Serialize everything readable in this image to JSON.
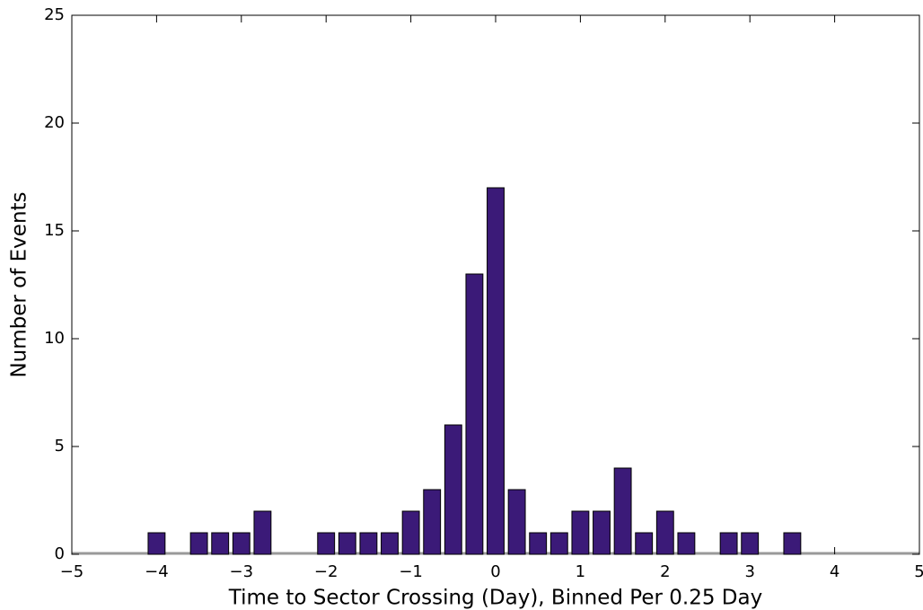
{
  "chart_data": {
    "type": "bar",
    "x_label": "Time to Sector Crossing (Day), Binned Per 0.25 Day",
    "y_label": "Number of Events",
    "x": [
      -4,
      -3.5,
      -3.25,
      -3,
      -2.75,
      -2,
      -1.75,
      -1.5,
      -1.25,
      -1,
      -0.75,
      -0.5,
      -0.25,
      0,
      0.25,
      0.5,
      0.75,
      1,
      1.25,
      1.5,
      1.75,
      2,
      2.25,
      2.75,
      3,
      3.5
    ],
    "values": [
      1,
      1,
      1,
      1,
      2,
      1,
      1,
      1,
      1,
      2,
      3,
      6,
      13,
      17,
      3,
      1,
      1,
      2,
      2,
      4,
      1,
      2,
      1,
      1,
      1,
      1
    ],
    "color": "#3b1a78",
    "xlim": [
      -5,
      5
    ],
    "xticks": [
      {
        "value": -5,
        "label": "−5"
      },
      {
        "value": -4,
        "label": "−4"
      },
      {
        "value": -3,
        "label": "−3"
      },
      {
        "value": -2,
        "label": "−2"
      },
      {
        "value": -1,
        "label": "−1"
      },
      0,
      1,
      2,
      3,
      4,
      5
    ],
    "ylim": [
      0,
      25
    ],
    "yticks": [
      0,
      5,
      10,
      15,
      20,
      25
    ]
  }
}
